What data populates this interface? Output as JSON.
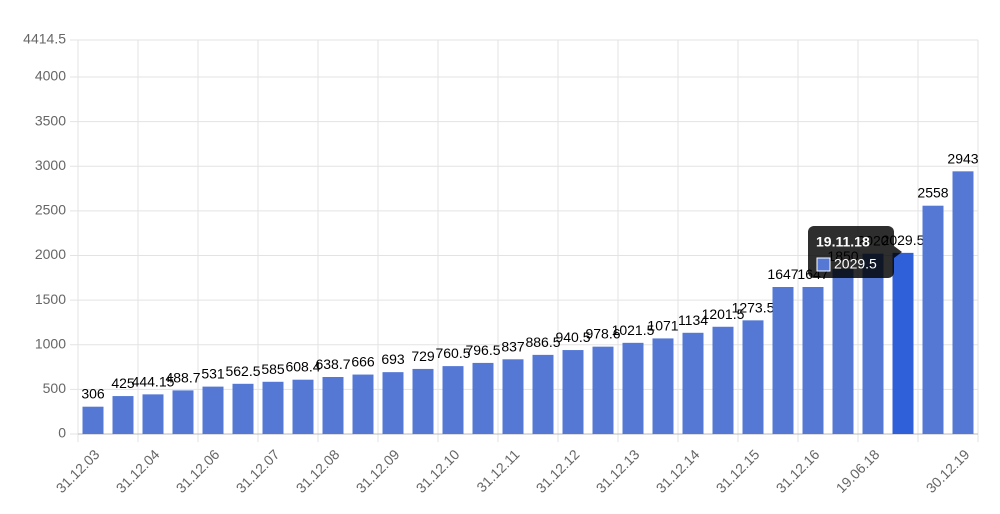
{
  "chart_data": {
    "type": "bar",
    "categories": [
      "31.12.03",
      null,
      "31.12.04",
      null,
      "31.12.06",
      null,
      "31.12.07",
      null,
      "31.12.08",
      null,
      "31.12.09",
      null,
      "31.12.10",
      null,
      "31.12.11",
      null,
      "31.12.12",
      null,
      "31.12.13",
      null,
      "31.12.14",
      null,
      "31.12.15",
      null,
      "31.12.16",
      null,
      "19.06.18",
      null,
      null,
      "30.12.19"
    ],
    "values": [
      306,
      425,
      444.15,
      488.7,
      531,
      562.5,
      585,
      608.4,
      638.7,
      666,
      693,
      729,
      760.5,
      796.5,
      837,
      886.5,
      940.5,
      978.6,
      1021.5,
      1071,
      1134,
      1201.5,
      1273.5,
      1647,
      1647,
      1850,
      2020,
      2029.5,
      2558,
      2943
    ],
    "color": "#5478d4",
    "ylim": [
      0,
      4414.5
    ],
    "yticks": [
      0,
      500,
      1000,
      1500,
      2000,
      2500,
      3000,
      3500,
      4000,
      4414.5
    ],
    "grid": true,
    "tooltip": {
      "title": "19.11.18"
    }
  }
}
